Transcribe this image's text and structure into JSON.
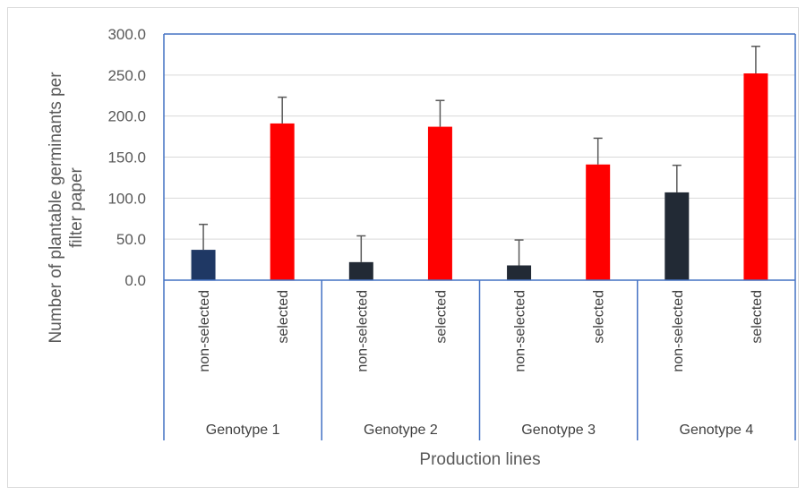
{
  "chart_data": {
    "type": "bar",
    "title": "",
    "xlabel": "Production lines",
    "ylabel": "Number of plantable germinants per filter paper",
    "ylim": [
      0,
      300
    ],
    "yticks": [
      "0.0",
      "50.0",
      "100.0",
      "150.0",
      "200.0",
      "250.0",
      "300.0"
    ],
    "grid": true,
    "legend": "none",
    "groups": [
      "Genotype 1",
      "Genotype 2",
      "Genotype 3",
      "Genotype 4"
    ],
    "bars": [
      {
        "group": "Genotype 1",
        "label": "non-selected",
        "value": 37,
        "error": 31,
        "color": "#1f3864"
      },
      {
        "group": "Genotype 1",
        "label": "selected",
        "value": 191,
        "error": 32,
        "color": "#ff0000"
      },
      {
        "group": "Genotype 2",
        "label": "non-selected",
        "value": 22,
        "error": 32,
        "color": "#222a35"
      },
      {
        "group": "Genotype 2",
        "label": "selected",
        "value": 187,
        "error": 32,
        "color": "#ff0000"
      },
      {
        "group": "Genotype 3",
        "label": "non-selected",
        "value": 18,
        "error": 31,
        "color": "#222a35"
      },
      {
        "group": "Genotype 3",
        "label": "selected",
        "value": 141,
        "error": 32,
        "color": "#ff0000"
      },
      {
        "group": "Genotype 4",
        "label": "non-selected",
        "value": 107,
        "error": 33,
        "color": "#222a35"
      },
      {
        "group": "Genotype 4",
        "label": "selected",
        "value": 252,
        "error": 33,
        "color": "#ff0000"
      }
    ],
    "colors": {
      "axis": "#4472c4",
      "grid": "#d9d9d9",
      "errorbar": "#595959"
    }
  }
}
